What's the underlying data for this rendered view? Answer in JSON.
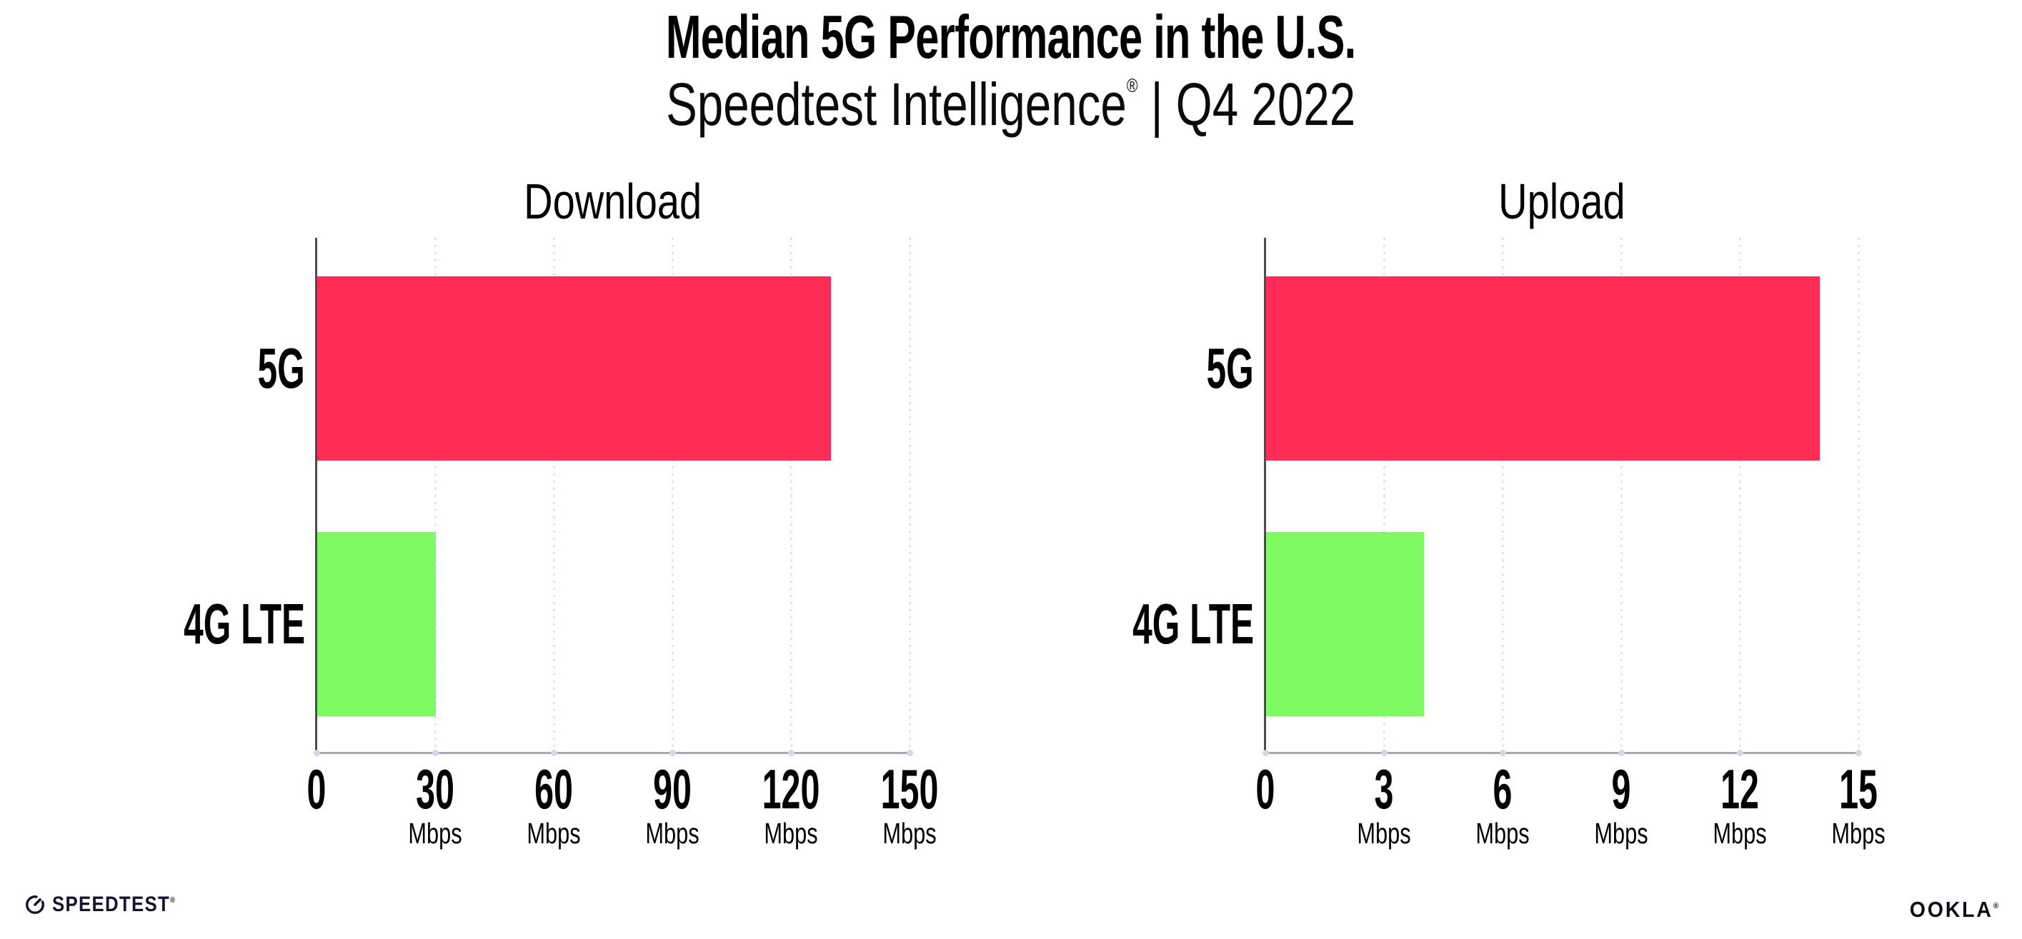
{
  "page": {
    "title": "Median 5G Performance in the U.S.",
    "subtitle": {
      "brand": "Speedtest Intelligence",
      "reg": "®",
      "rest": " | Q4 2022"
    }
  },
  "colors": {
    "bar_5g": "#FF2D55",
    "bar_4g_lte": "#80FA62",
    "gridline": "#E2E2EC",
    "x_axis": "#A8A8B0",
    "y_axis": "#4C4C54",
    "tick_dot": "#D6D6E4",
    "text": "#000000"
  },
  "chart_data": [
    {
      "type": "bar",
      "orientation": "horizontal",
      "title": "Download",
      "unit": "Mbps",
      "xlim": [
        0,
        150
      ],
      "xticks": [
        0,
        30,
        60,
        90,
        120,
        150
      ],
      "categories": [
        "5G",
        "4G LTE"
      ],
      "values": [
        130,
        30
      ],
      "bar_colors": [
        "#FF2D55",
        "#80FA62"
      ],
      "grid": "dotted-vertical",
      "legend": "none"
    },
    {
      "type": "bar",
      "orientation": "horizontal",
      "title": "Upload",
      "unit": "Mbps",
      "xlim": [
        0,
        15
      ],
      "xticks": [
        0,
        3,
        6,
        9,
        12,
        15
      ],
      "categories": [
        "5G",
        "4G LTE"
      ],
      "values": [
        14,
        4
      ],
      "bar_colors": [
        "#FF2D55",
        "#80FA62"
      ],
      "grid": "dotted-vertical",
      "legend": "none"
    }
  ],
  "footer": {
    "speedtest_label": "SPEEDTEST",
    "speedtest_mark": "®",
    "ookla_label": "OOKLA",
    "ookla_mark": "®"
  }
}
